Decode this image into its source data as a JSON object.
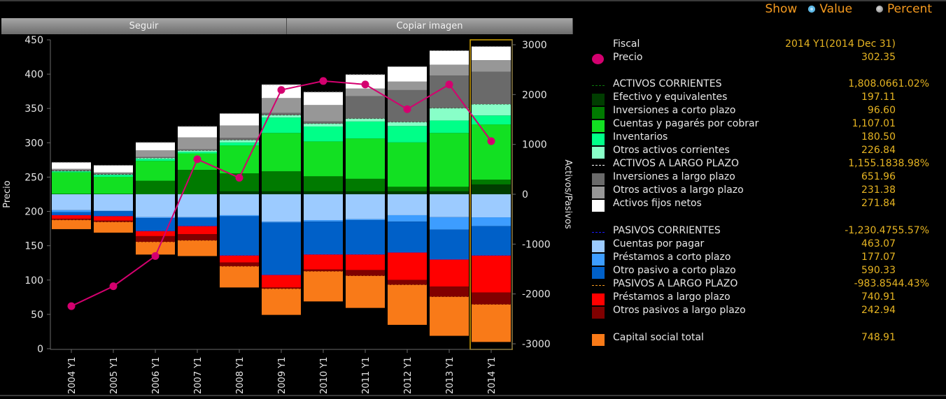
{
  "toolbar": {
    "seguir_label": "Seguir",
    "copiar_label": "Copiar imagen"
  },
  "show": {
    "label": "Show",
    "options": [
      "Value",
      "Percent"
    ],
    "selected": "Value"
  },
  "legend": {
    "fiscal_label": "Fiscal",
    "fiscal_value": "2014 Y1(2014 Dec 31)",
    "items": [
      {
        "label": "Precio",
        "value": "302.35",
        "kind": "dot",
        "color": "#d4006f"
      },
      {
        "label": "ACTIVOS CORRIENTES",
        "value": "1,808.0661.02%",
        "kind": "dash",
        "color": "#0b7a0b"
      },
      {
        "label": "Efectivo y equivalentes",
        "value": "197.11",
        "kind": "swatch",
        "color": "#003d00"
      },
      {
        "label": "Inversiones a corto plazo",
        "value": "96.60",
        "kind": "swatch",
        "color": "#007a00"
      },
      {
        "label": "Cuentas y pagarés por cobrar",
        "value": "1,107.01",
        "kind": "swatch",
        "color": "#12e022"
      },
      {
        "label": "Inventarios",
        "value": "180.50",
        "kind": "swatch",
        "color": "#00ff88"
      },
      {
        "label": "Otros activos corrientes",
        "value": "226.84",
        "kind": "swatch",
        "color": "#88ffc8"
      },
      {
        "label": "ACTIVOS A LARGO PLAZO",
        "value": "1,155.1838.98%",
        "kind": "dash",
        "color": "#ffffff"
      },
      {
        "label": "Inversiones a largo plazo",
        "value": "651.96",
        "kind": "swatch",
        "color": "#6a6a6a"
      },
      {
        "label": "Otros activos a largo plazo",
        "value": "231.38",
        "kind": "swatch",
        "color": "#979797"
      },
      {
        "label": "Activos fijos netos",
        "value": "271.84",
        "kind": "swatch",
        "color": "#ffffff"
      },
      {
        "label": "PASIVOS CORRIENTES",
        "value": "-1,230.4755.57%",
        "kind": "dash",
        "color": "#1a1aff"
      },
      {
        "label": "Cuentas por pagar",
        "value": "463.07",
        "kind": "swatch",
        "color": "#9ccbff"
      },
      {
        "label": "Préstamos a corto plazo",
        "value": "177.07",
        "kind": "swatch",
        "color": "#3d9dff"
      },
      {
        "label": "Otro pasivo a corto plazo",
        "value": "590.33",
        "kind": "swatch",
        "color": "#0060c8"
      },
      {
        "label": "PASIVOS A LARGO PLAZO",
        "value": "-983.8544.43%",
        "kind": "dash",
        "color": "#f59a1f"
      },
      {
        "label": "Préstamos a largo plazo",
        "value": "740.91",
        "kind": "swatch",
        "color": "#ff0000"
      },
      {
        "label": "Otros pasivos a largo plazo",
        "value": "242.94",
        "kind": "swatch",
        "color": "#800000"
      },
      {
        "label": "Capital social total",
        "value": "748.91",
        "kind": "swatch",
        "color": "#f97a18"
      }
    ]
  },
  "chart_data": {
    "type": "bar",
    "subtype": "stacked-bar-with-line",
    "categories": [
      "2004 Y1",
      "2005 Y1",
      "2006 Y1",
      "2007 Y1",
      "2008 Y1",
      "2009 Y1",
      "2010 Y1",
      "2011 Y1",
      "2012 Y1",
      "2013 Y1",
      "2014 Y1"
    ],
    "highlighted_category": "2014 Y1",
    "ylabel_left": "Precio",
    "ylabel_right": "Activos/Pasivos",
    "ylim_left": [
      0,
      450
    ],
    "yticks_left": [
      0,
      50,
      100,
      150,
      200,
      250,
      300,
      350,
      400,
      450
    ],
    "ylim_right": [
      -3000,
      3000
    ],
    "yticks_right": [
      -3000,
      -2000,
      -1000,
      0,
      1000,
      2000,
      3000
    ],
    "line_series": {
      "name": "Precio",
      "axis": "left",
      "color": "#d4006f",
      "values": [
        62,
        91,
        135,
        276,
        249,
        377,
        390,
        385,
        349,
        385,
        302.35
      ]
    },
    "positive_series": [
      {
        "name": "Efectivo y equivalentes",
        "color": "#003d00",
        "values": [
          0,
          0,
          0,
          0,
          60,
          60,
          60,
          60,
          60,
          60,
          197.11
        ]
      },
      {
        "name": "Inversiones a corto plazo",
        "color": "#007a00",
        "values": [
          10,
          10,
          270,
          490,
          360,
          400,
          300,
          250,
          90,
          90,
          96.6
        ]
      },
      {
        "name": "Cuentas y pagarés por cobrar",
        "color": "#12e022",
        "values": [
          430,
          340,
          400,
          330,
          560,
          770,
          700,
          810,
          890,
          1080,
          1107.01
        ]
      },
      {
        "name": "Inventarios",
        "color": "#00ff88",
        "values": [
          20,
          40,
          40,
          30,
          60,
          310,
          300,
          340,
          330,
          250,
          180.5
        ]
      },
      {
        "name": "Otros activos corrientes",
        "color": "#88ffc8",
        "values": [
          10,
          10,
          20,
          30,
          50,
          50,
          60,
          60,
          80,
          250,
          226.84
        ]
      },
      {
        "name": "Inversiones a largo plazo",
        "color": "#6a6a6a",
        "values": [
          20,
          20,
          20,
          20,
          40,
          40,
          40,
          450,
          640,
          650,
          651.96
        ]
      },
      {
        "name": "Otros activos a largo plazo",
        "color": "#979797",
        "values": [
          20,
          20,
          130,
          240,
          250,
          300,
          330,
          150,
          170,
          220,
          231.38
        ]
      },
      {
        "name": "Activos fijos netos",
        "color": "#ffffff",
        "values": [
          130,
          140,
          160,
          220,
          240,
          270,
          260,
          280,
          300,
          280,
          271.84
        ]
      }
    ],
    "negative_series": [
      {
        "name": "Cuentas por pagar",
        "color": "#9ccbff",
        "values": [
          -320,
          -330,
          -460,
          -460,
          -420,
          -550,
          -520,
          -500,
          -420,
          -460,
          -463.07
        ]
      },
      {
        "name": "Préstamos a corto plazo",
        "color": "#3d9dff",
        "values": [
          -40,
          -10,
          -20,
          -10,
          -20,
          -20,
          -30,
          -20,
          -130,
          -250,
          -177.07
        ]
      },
      {
        "name": "Otro pasivo a corto plazo",
        "color": "#0060c8",
        "values": [
          -60,
          -100,
          -260,
          -170,
          -790,
          -1050,
          -660,
          -690,
          -620,
          -600,
          -590.33
        ]
      },
      {
        "name": "Préstamos a largo plazo",
        "color": "#ff0000",
        "values": [
          -70,
          -90,
          -100,
          -160,
          -140,
          -250,
          -300,
          -310,
          -550,
          -540,
          -740.91
        ]
      },
      {
        "name": "Otros pasivos a largo plazo",
        "color": "#800000",
        "values": [
          -30,
          -30,
          -120,
          -130,
          -80,
          -30,
          -40,
          -120,
          -100,
          -210,
          -242.94
        ]
      },
      {
        "name": "Capital social total",
        "color": "#f97a18",
        "values": [
          -180,
          -210,
          -250,
          -310,
          -420,
          -520,
          -600,
          -640,
          -800,
          -780,
          -748.91
        ]
      }
    ]
  }
}
